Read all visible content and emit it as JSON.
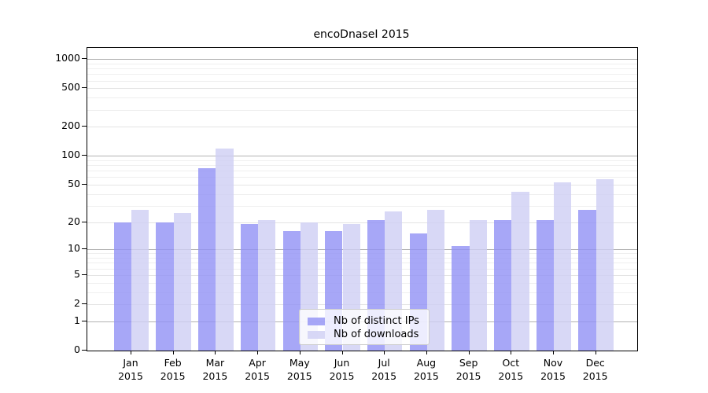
{
  "chart_data": {
    "type": "bar",
    "title": "encoDnaseI 2015",
    "categories": [
      {
        "month": "Jan",
        "year": "2015"
      },
      {
        "month": "Feb",
        "year": "2015"
      },
      {
        "month": "Mar",
        "year": "2015"
      },
      {
        "month": "Apr",
        "year": "2015"
      },
      {
        "month": "May",
        "year": "2015"
      },
      {
        "month": "Jun",
        "year": "2015"
      },
      {
        "month": "Jul",
        "year": "2015"
      },
      {
        "month": "Aug",
        "year": "2015"
      },
      {
        "month": "Sep",
        "year": "2015"
      },
      {
        "month": "Oct",
        "year": "2015"
      },
      {
        "month": "Nov",
        "year": "2015"
      },
      {
        "month": "Dec",
        "year": "2015"
      }
    ],
    "series": [
      {
        "name": "Nb of distinct IPs",
        "color_rgb": [
          145,
          145,
          245
        ],
        "alpha": 0.8,
        "values": [
          20,
          20,
          74,
          19,
          16,
          16,
          21,
          15,
          11,
          21,
          21,
          27
        ]
      },
      {
        "name": "Nb of downloads",
        "color_rgb": [
          206,
          206,
          244
        ],
        "alpha": 0.8,
        "values": [
          27,
          25,
          120,
          21,
          20,
          19,
          26,
          27,
          21,
          42,
          53,
          57
        ]
      }
    ],
    "y_ticks": [
      0,
      1,
      2,
      5,
      10,
      20,
      50,
      100,
      200,
      500,
      1000
    ],
    "y_minor_gridlines": [
      3,
      4,
      6,
      7,
      8,
      9,
      30,
      40,
      60,
      70,
      80,
      90,
      300,
      400,
      600,
      700,
      800,
      900
    ],
    "scale": "log1p",
    "ylim": [
      0,
      1300
    ],
    "xlabel": "",
    "ylabel": "",
    "grid": true,
    "legend_position": "inside-bottom-center",
    "colors": {
      "grid_major": "#b2b2b2",
      "grid_mid": "#e4e4e4",
      "grid_minor": "#efefef",
      "frame": "#000000",
      "legend_border": "#cccccc"
    }
  }
}
